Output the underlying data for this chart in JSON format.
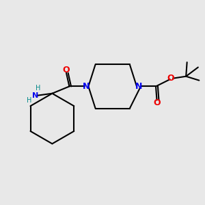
{
  "background_color": "#e8e8e8",
  "bond_color": "#000000",
  "nitrogen_color": "#0000ee",
  "oxygen_color": "#ee0000",
  "nh_color": "#008888",
  "line_width": 1.5,
  "figsize": [
    3.0,
    3.0
  ],
  "dpi": 100,
  "xlim": [
    0,
    10
  ],
  "ylim": [
    0,
    10
  ]
}
